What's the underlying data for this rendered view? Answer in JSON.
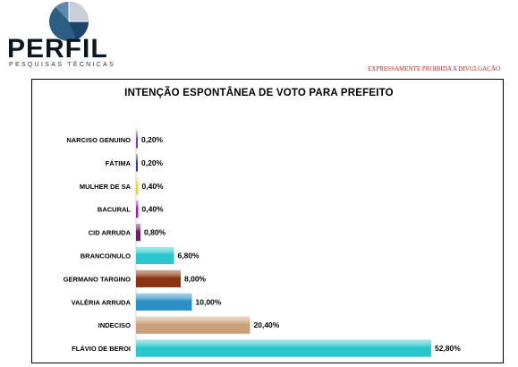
{
  "brand": {
    "name": "PERFIL",
    "tagline": "PESQUISAS TÉCNICAS",
    "logo_icon": "pie-chart-logo-icon"
  },
  "notice": "EXPRESSAMENTE PROIBIDA A DIVULGAÇÃO",
  "colors": {
    "notice": "#c8241f",
    "border": "#000000"
  },
  "chart_data": {
    "type": "bar",
    "orientation": "horizontal",
    "title": "INTENÇÃO ESPONTÂNEA DE VOTO PARA PREFEITO",
    "xlabel": "",
    "ylabel": "",
    "xlim": [
      0,
      52.8
    ],
    "grid": false,
    "legend": "none",
    "categories": [
      "NARCISO GENUINO",
      "FÁTIMA",
      "MULHER DE SA",
      "BACURAL",
      "CID ARRUDA",
      "BRANCO/NULO",
      "GERMANO TARGINO",
      "VALÉRIA ARRUDA",
      "INDECISO",
      "FLÁVIO DE BEROI"
    ],
    "values": [
      0.2,
      0.2,
      0.4,
      0.4,
      0.8,
      6.8,
      8.0,
      10.0,
      20.4,
      52.8
    ],
    "value_labels": [
      "0,20%",
      "0,20%",
      "0,40%",
      "0,40%",
      "0,80%",
      "6,80%",
      "8,00%",
      "10,00%",
      "20,40%",
      "52,80%"
    ],
    "colors": [
      "#7a3fa0",
      "#2a3c9c",
      "#e0d54a",
      "#9b1fa8",
      "#6a1f6a",
      "#29c6cf",
      "#8a3510",
      "#2a8fc6",
      "#caa07a",
      "#29c6cf"
    ]
  }
}
